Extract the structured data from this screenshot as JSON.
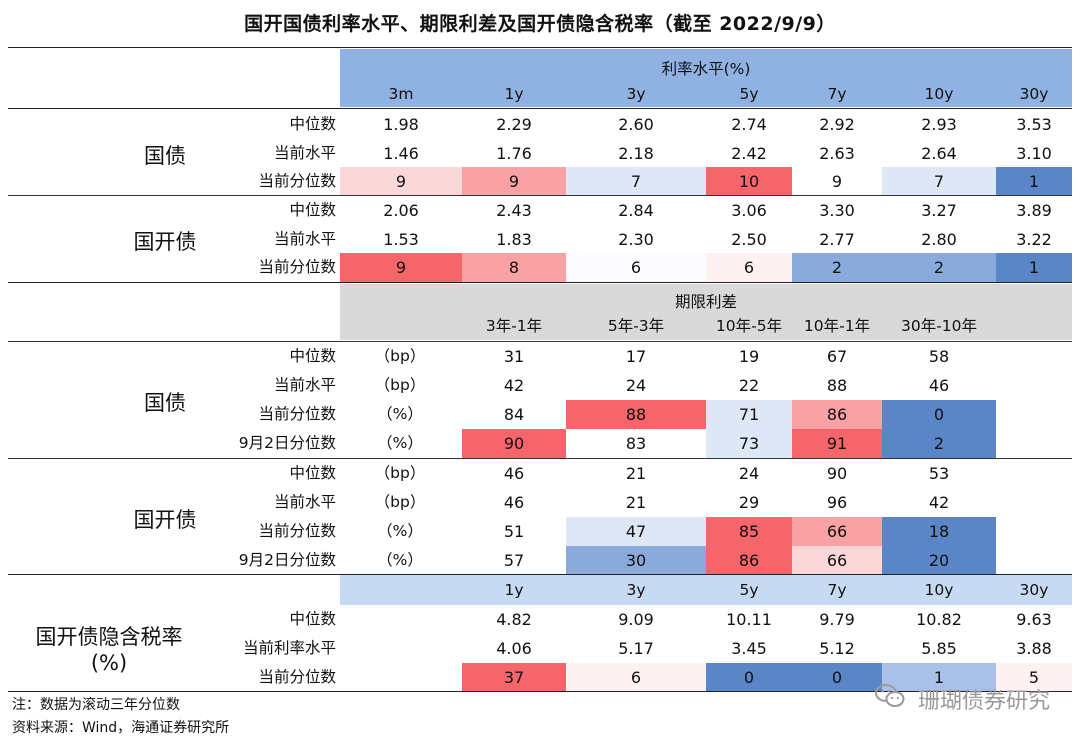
{
  "title": "国开国债利率水平、期限利差及国开债隐含税率（截至 2022/9/9）",
  "colors": {
    "red_strong": "#f4666a",
    "red_mid": "#f8a2a5",
    "red_light": "#fcd7d9",
    "red_faint": "#fdf1f2",
    "blue_strong": "#5a86c8",
    "blue_mid": "#8aaadc",
    "blue_light": "#dde7f6",
    "header_blue": "#8fb2e3",
    "header_gray": "#d9d9d9",
    "header_light_blue": "#c7daf3"
  },
  "section1": {
    "header": "利率水平(%)",
    "columns": [
      "3m",
      "1y",
      "3y",
      "5y",
      "7y",
      "10y",
      "30y"
    ],
    "groups": [
      {
        "name": "国债",
        "rows": [
          {
            "label": "中位数",
            "values": [
              "1.98",
              "2.29",
              "2.60",
              "2.74",
              "2.92",
              "2.93",
              "3.53"
            ]
          },
          {
            "label": "当前水平",
            "values": [
              "1.46",
              "1.76",
              "2.18",
              "2.42",
              "2.63",
              "2.64",
              "3.10"
            ]
          },
          {
            "label": "当前分位数",
            "values": [
              "9",
              "9",
              "7",
              "10",
              "9",
              "7",
              "1"
            ]
          }
        ]
      },
      {
        "name": "国开债",
        "rows": [
          {
            "label": "中位数",
            "values": [
              "2.06",
              "2.43",
              "2.84",
              "3.06",
              "3.30",
              "3.27",
              "3.89"
            ]
          },
          {
            "label": "当前水平",
            "values": [
              "1.53",
              "1.83",
              "2.30",
              "2.50",
              "2.77",
              "2.80",
              "3.22"
            ]
          },
          {
            "label": "当前分位数",
            "values": [
              "9",
              "8",
              "6",
              "6",
              "2",
              "2",
              "1"
            ]
          }
        ]
      }
    ]
  },
  "section2": {
    "header": "期限利差",
    "columns": [
      "3年-1年",
      "5年-3年",
      "10年-5年",
      "10年-1年",
      "30年-10年"
    ],
    "groups": [
      {
        "name": "国债",
        "rows": [
          {
            "label": "中位数",
            "unit": "（bp）",
            "values": [
              "31",
              "17",
              "19",
              "67",
              "58"
            ]
          },
          {
            "label": "当前水平",
            "unit": "（bp）",
            "values": [
              "42",
              "24",
              "22",
              "88",
              "46"
            ]
          },
          {
            "label": "当前分位数",
            "unit": "（%）",
            "values": [
              "84",
              "88",
              "71",
              "86",
              "0"
            ]
          },
          {
            "label": "9月2日分位数",
            "unit": "（%）",
            "values": [
              "90",
              "83",
              "73",
              "91",
              "2"
            ]
          }
        ]
      },
      {
        "name": "国开债",
        "rows": [
          {
            "label": "中位数",
            "unit": "（bp）",
            "values": [
              "46",
              "21",
              "24",
              "90",
              "53"
            ]
          },
          {
            "label": "当前水平",
            "unit": "（bp）",
            "values": [
              "46",
              "21",
              "29",
              "96",
              "42"
            ]
          },
          {
            "label": "当前分位数",
            "unit": "（%）",
            "values": [
              "51",
              "47",
              "85",
              "66",
              "18"
            ]
          },
          {
            "label": "9月2日分位数",
            "unit": "（%）",
            "values": [
              "57",
              "30",
              "86",
              "66",
              "20"
            ]
          }
        ]
      }
    ]
  },
  "section3": {
    "name_line1": "国开债隐含税率",
    "name_line2": "(%)",
    "columns": [
      "1y",
      "3y",
      "5y",
      "7y",
      "10y",
      "30y"
    ],
    "rows": [
      {
        "label": "中位数",
        "values": [
          "4.82",
          "9.09",
          "10.11",
          "9.79",
          "10.82",
          "9.63"
        ]
      },
      {
        "label": "当前利率水平",
        "values": [
          "4.06",
          "5.17",
          "3.45",
          "5.12",
          "5.85",
          "3.88"
        ]
      },
      {
        "label": "当前分位数",
        "values": [
          "37",
          "6",
          "0",
          "0",
          "1",
          "5"
        ]
      }
    ]
  },
  "notes": {
    "note": "注：数据为滚动三年分位数",
    "source": "资料来源：Wind，海通证券研究所"
  },
  "watermark": "珊瑚债券研究",
  "watermark_icon": "wechat-icon"
}
